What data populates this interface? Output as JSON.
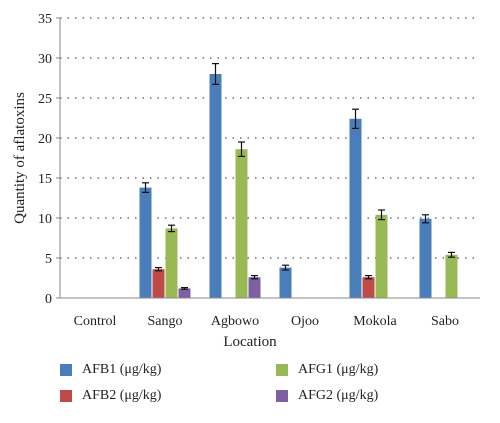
{
  "chart_data": {
    "type": "bar",
    "title": "",
    "xlabel": "Location",
    "ylabel": "Quantity of aflatoxins",
    "ylim": [
      0,
      35
    ],
    "yticks": [
      "0",
      "5",
      "10",
      "15",
      "20",
      "25",
      "30",
      "35"
    ],
    "grid": "horizontal dotted",
    "legend_position": "bottom",
    "categories": [
      "Control",
      "Sango",
      "Agbowo",
      "Ojoo",
      "Mokola",
      "Sabo"
    ],
    "series": [
      {
        "name": "AFB1 (μg/kg)",
        "color": "#4a7ebb",
        "values": [
          0,
          13.8,
          28.0,
          3.8,
          22.4,
          9.9
        ],
        "errors": [
          0,
          0.6,
          1.3,
          0.3,
          1.2,
          0.5
        ]
      },
      {
        "name": "AFB2 (μg/kg)",
        "color": "#be4b48",
        "values": [
          0,
          3.6,
          0,
          0,
          2.6,
          0
        ],
        "errors": [
          0,
          0.2,
          0,
          0,
          0.2,
          0
        ]
      },
      {
        "name": "AFG1 (μg/kg)",
        "color": "#98b954",
        "values": [
          0,
          8.7,
          18.6,
          0,
          10.4,
          5.4
        ],
        "errors": [
          0,
          0.4,
          0.9,
          0,
          0.6,
          0.3
        ]
      },
      {
        "name": "AFG2 (μg/kg)",
        "color": "#7d60a0",
        "values": [
          0,
          1.2,
          2.6,
          0,
          0,
          0
        ],
        "errors": [
          0,
          0.1,
          0.2,
          0,
          0,
          0
        ]
      }
    ]
  }
}
